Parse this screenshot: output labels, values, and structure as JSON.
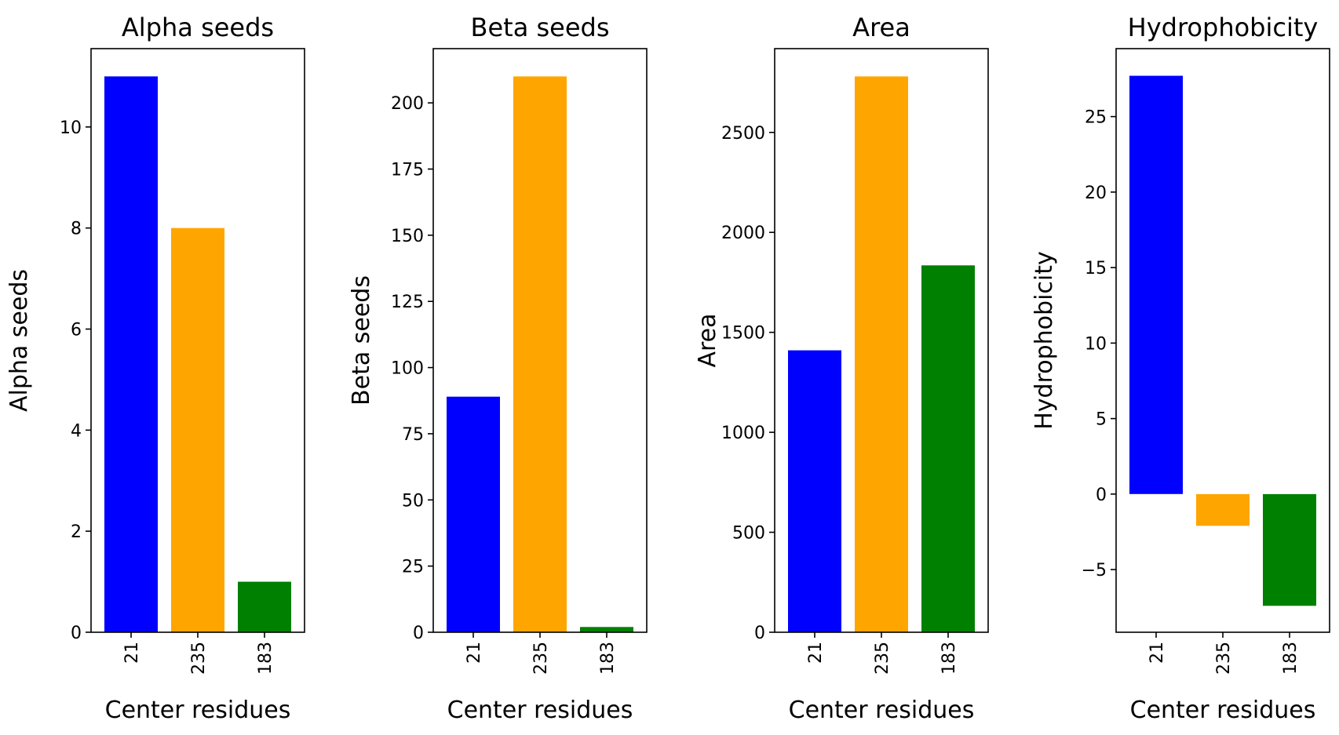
{
  "chart_data": [
    {
      "type": "bar",
      "title": "Alpha seeds",
      "xlabel": "Center residues",
      "ylabel": "Alpha seeds",
      "categories": [
        "21",
        "235",
        "183"
      ],
      "values": [
        11,
        8,
        1
      ],
      "colors": [
        "#0000ff",
        "#ffa500",
        "#008000"
      ],
      "ylim": [
        0,
        11.55
      ],
      "yticks": [
        0,
        2,
        4,
        6,
        8,
        10
      ],
      "ytick_labels": [
        "0",
        "2",
        "4",
        "6",
        "8",
        "10"
      ],
      "grid": false
    },
    {
      "type": "bar",
      "title": "Beta seeds",
      "xlabel": "Center residues",
      "ylabel": "Beta seeds",
      "categories": [
        "21",
        "235",
        "183"
      ],
      "values": [
        89,
        210,
        2
      ],
      "colors": [
        "#0000ff",
        "#ffa500",
        "#008000"
      ],
      "ylim": [
        0,
        220.5
      ],
      "yticks": [
        0,
        25,
        50,
        75,
        100,
        125,
        150,
        175,
        200
      ],
      "ytick_labels": [
        "0",
        "25",
        "50",
        "75",
        "100",
        "125",
        "150",
        "175",
        "200"
      ],
      "grid": false
    },
    {
      "type": "bar",
      "title": "Area",
      "xlabel": "Center residues",
      "ylabel": "Area",
      "categories": [
        "21",
        "235",
        "183"
      ],
      "values": [
        1410,
        2780,
        1835
      ],
      "colors": [
        "#0000ff",
        "#ffa500",
        "#008000"
      ],
      "ylim": [
        0,
        2919
      ],
      "yticks": [
        0,
        500,
        1000,
        1500,
        2000,
        2500
      ],
      "ytick_labels": [
        "0",
        "500",
        "1000",
        "1500",
        "2000",
        "2500"
      ],
      "grid": false
    },
    {
      "type": "bar",
      "title": "Hydrophobicity",
      "xlabel": "Center residues",
      "ylabel": "Hydrophobicity",
      "categories": [
        "21",
        "235",
        "183"
      ],
      "values": [
        27.7,
        -2.1,
        -7.4
      ],
      "colors": [
        "#0000ff",
        "#ffa500",
        "#008000"
      ],
      "ylim": [
        -9.15,
        29.5
      ],
      "yticks": [
        -5,
        0,
        5,
        10,
        15,
        20,
        25
      ],
      "ytick_labels": [
        "−5",
        "0",
        "5",
        "10",
        "15",
        "20",
        "25"
      ],
      "grid": false
    }
  ]
}
